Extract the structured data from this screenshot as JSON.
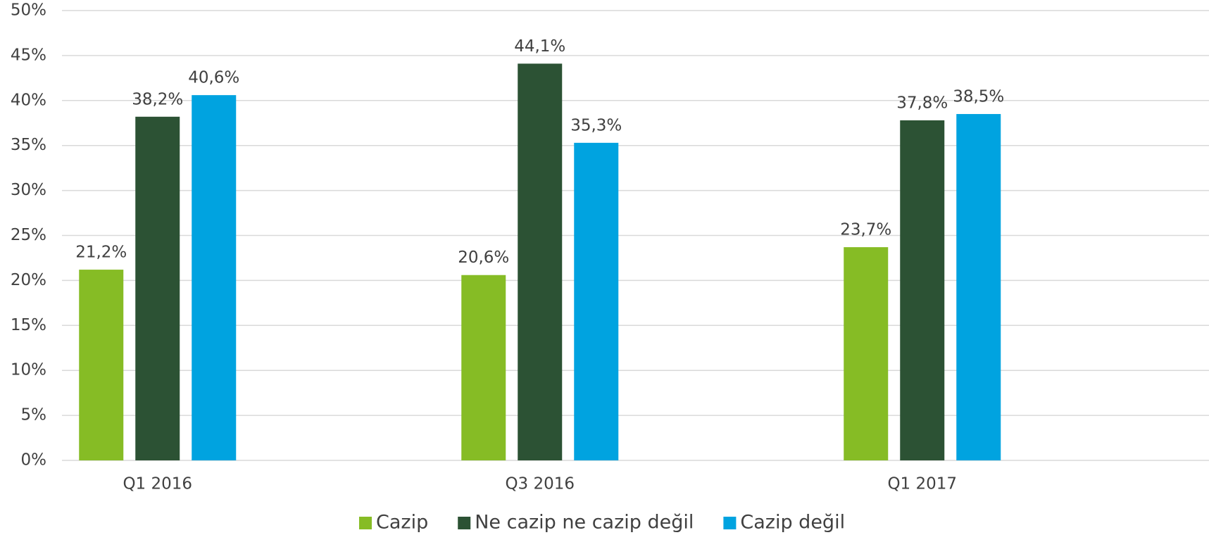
{
  "chart_data": {
    "type": "bar",
    "categories": [
      "Q1 2016",
      "Q3 2016",
      "Q1 2017"
    ],
    "series": [
      {
        "name": "Cazip",
        "color": "#86bc25",
        "values": [
          21.2,
          20.6,
          23.7
        ],
        "value_labels": [
          "21,2%",
          "20,6%",
          "23,7%"
        ]
      },
      {
        "name": "Ne cazip ne cazip değil",
        "color": "#2c5234",
        "values": [
          38.2,
          44.1,
          37.8
        ],
        "value_labels": [
          "38,2%",
          "44,1%",
          "37,8%"
        ]
      },
      {
        "name": "Cazip değil",
        "color": "#00a3e0",
        "values": [
          40.6,
          35.3,
          38.5
        ],
        "value_labels": [
          "40,6%",
          "35,3%",
          "38,5%"
        ]
      }
    ],
    "ylim": [
      0,
      50
    ],
    "yticks": [
      {
        "value": 0,
        "label": "0%"
      },
      {
        "value": 5,
        "label": "5%"
      },
      {
        "value": 10,
        "label": "10%"
      },
      {
        "value": 15,
        "label": "15%"
      },
      {
        "value": 20,
        "label": "20%"
      },
      {
        "value": 25,
        "label": "25%"
      },
      {
        "value": 30,
        "label": "30%"
      },
      {
        "value": 35,
        "label": "35%"
      },
      {
        "value": 40,
        "label": "40%"
      },
      {
        "value": 45,
        "label": "45%"
      },
      {
        "value": 50,
        "label": "50%"
      }
    ],
    "grid": true,
    "legend": "bottom"
  }
}
